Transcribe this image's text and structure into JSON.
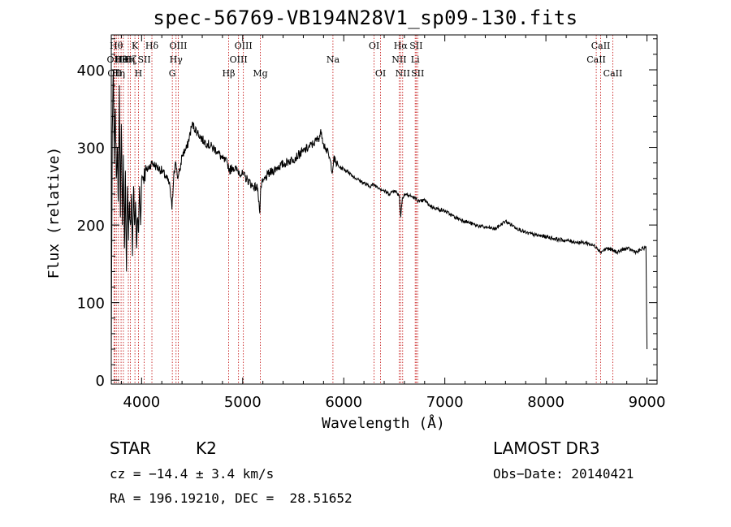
{
  "chart_data": {
    "type": "line",
    "title": "spec-56769-VB194N28V1_sp09-130.fits",
    "xlabel": "Wavelength (Å)",
    "ylabel": "Flux (relative)",
    "xlim": [
      3700,
      9100
    ],
    "ylim": [
      -5,
      445
    ],
    "xticks": [
      4000,
      5000,
      6000,
      7000,
      8000,
      9000
    ],
    "yticks": [
      0,
      100,
      200,
      300,
      400
    ],
    "series": [
      {
        "name": "flux",
        "x": [
          3700,
          3710,
          3720,
          3730,
          3740,
          3750,
          3760,
          3770,
          3780,
          3790,
          3800,
          3810,
          3820,
          3830,
          3840,
          3850,
          3860,
          3870,
          3880,
          3890,
          3900,
          3910,
          3920,
          3930,
          3940,
          3950,
          3960,
          3970,
          3980,
          3990,
          4000,
          4050,
          4100,
          4150,
          4200,
          4250,
          4280,
          4300,
          4320,
          4340,
          4360,
          4380,
          4400,
          4450,
          4500,
          4550,
          4600,
          4650,
          4700,
          4750,
          4800,
          4850,
          4870,
          4900,
          4950,
          5000,
          5050,
          5100,
          5150,
          5170,
          5180,
          5200,
          5250,
          5300,
          5350,
          5400,
          5450,
          5500,
          5550,
          5600,
          5650,
          5700,
          5750,
          5780,
          5800,
          5820,
          5850,
          5890,
          5900,
          5950,
          6000,
          6050,
          6100,
          6150,
          6200,
          6250,
          6300,
          6350,
          6400,
          6450,
          6500,
          6550,
          6563,
          6580,
          6600,
          6650,
          6700,
          6750,
          6800,
          6850,
          6900,
          6950,
          7000,
          7100,
          7200,
          7300,
          7400,
          7500,
          7600,
          7700,
          7800,
          7900,
          8000,
          8100,
          8200,
          8300,
          8400,
          8500,
          8540,
          8600,
          8650,
          8700,
          8800,
          8900,
          8990,
          9000
        ],
        "y": [
          30,
          320,
          400,
          280,
          350,
          260,
          300,
          230,
          380,
          210,
          330,
          200,
          290,
          170,
          270,
          140,
          250,
          180,
          230,
          200,
          240,
          160,
          250,
          200,
          230,
          170,
          210,
          190,
          250,
          200,
          260,
          270,
          280,
          275,
          270,
          260,
          250,
          220,
          270,
          280,
          260,
          270,
          290,
          300,
          330,
          320,
          310,
          305,
          300,
          295,
          285,
          280,
          270,
          275,
          270,
          265,
          258,
          250,
          248,
          215,
          250,
          255,
          265,
          270,
          275,
          278,
          282,
          285,
          290,
          295,
          300,
          305,
          312,
          320,
          305,
          300,
          290,
          270,
          285,
          275,
          272,
          268,
          262,
          258,
          254,
          250,
          252,
          248,
          244,
          240,
          245,
          238,
          210,
          235,
          240,
          238,
          235,
          230,
          232,
          225,
          222,
          220,
          218,
          210,
          205,
          200,
          197,
          195,
          205,
          197,
          190,
          187,
          185,
          182,
          180,
          178,
          177,
          172,
          165,
          170,
          168,
          165,
          170,
          165,
          172,
          40
        ]
      }
    ],
    "lines": [
      {
        "x": 3727,
        "label": "OII",
        "row": 2
      },
      {
        "x": 3734,
        "label": "OII",
        "row": 3
      },
      {
        "x": 3750,
        "label": "Hθ",
        "row": 1
      },
      {
        "x": 3771,
        "label": "Hη",
        "row": 3
      },
      {
        "x": 3797,
        "label": "Hθ",
        "row": 2
      },
      {
        "x": 3820,
        "label": "HeI",
        "row": 2
      },
      {
        "x": 3869,
        "label": "Hη",
        "row": 2
      },
      {
        "x": 3889,
        "label": "Hζ",
        "row": 2
      },
      {
        "x": 3934,
        "label": "K",
        "row": 1
      },
      {
        "x": 3969,
        "label": "H",
        "row": 3
      },
      {
        "x": 4026,
        "label": "SII",
        "row": 2
      },
      {
        "x": 4102,
        "label": "Hδ",
        "row": 1
      },
      {
        "x": 4304,
        "label": "G",
        "row": 3
      },
      {
        "x": 4341,
        "label": "Hγ",
        "row": 2
      },
      {
        "x": 4363,
        "label": "OIII",
        "row": 1
      },
      {
        "x": 4861,
        "label": "Hβ",
        "row": 3
      },
      {
        "x": 4959,
        "label": "OIII",
        "row": 2
      },
      {
        "x": 5007,
        "label": "OIII",
        "row": 1
      },
      {
        "x": 5175,
        "label": "Mg",
        "row": 3
      },
      {
        "x": 5893,
        "label": "Na",
        "row": 2
      },
      {
        "x": 6300,
        "label": "OI",
        "row": 1
      },
      {
        "x": 6364,
        "label": "OI",
        "row": 3
      },
      {
        "x": 6548,
        "label": "NII",
        "row": 2
      },
      {
        "x": 6563,
        "label": "Hα",
        "row": 1
      },
      {
        "x": 6583,
        "label": "NII",
        "row": 3
      },
      {
        "x": 6707,
        "label": "Li",
        "row": 2
      },
      {
        "x": 6716,
        "label": "SII",
        "row": 1
      },
      {
        "x": 6731,
        "label": "SII",
        "row": 3
      },
      {
        "x": 8498,
        "label": "CaII",
        "row": 2
      },
      {
        "x": 8542,
        "label": "CaII",
        "row": 1
      },
      {
        "x": 8662,
        "label": "CaII",
        "row": 3
      }
    ]
  },
  "info": {
    "class_label": "STAR",
    "subclass_label": "K2",
    "survey": "LAMOST DR3",
    "cz": "cz = −14.4 ± 3.4 km/s",
    "obs_date": "Obs−Date: 20140421",
    "coords": "RA = 196.19210, DEC =  28.51652"
  }
}
